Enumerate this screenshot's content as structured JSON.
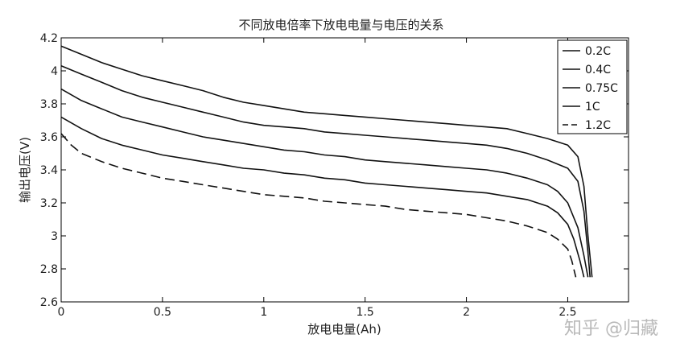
{
  "chart_data": {
    "type": "line",
    "title": "不同放电倍率下放电电量与电压的关系",
    "xlabel": "放电电量(Ah)",
    "ylabel": "输出电压(V)",
    "xlim": [
      0,
      2.8
    ],
    "ylim": [
      2.6,
      4.2
    ],
    "xticks": [
      "0",
      "0.5",
      "1",
      "1.5",
      "2",
      "2.5"
    ],
    "yticks": [
      "2.6",
      "2.8",
      "3",
      "3.2",
      "3.4",
      "3.6",
      "3.8",
      "4",
      "4.2"
    ],
    "grid": false,
    "legend_position": "top-right",
    "series": [
      {
        "name": "0.2C",
        "style": "solid",
        "x": [
          0,
          0.1,
          0.2,
          0.3,
          0.4,
          0.5,
          0.6,
          0.7,
          0.8,
          0.9,
          1.0,
          1.1,
          1.2,
          1.3,
          1.4,
          1.5,
          1.6,
          1.7,
          1.8,
          1.9,
          2.0,
          2.1,
          2.2,
          2.3,
          2.4,
          2.5,
          2.55,
          2.58,
          2.6,
          2.62
        ],
        "y": [
          4.15,
          4.1,
          4.05,
          4.01,
          3.97,
          3.94,
          3.91,
          3.88,
          3.84,
          3.81,
          3.79,
          3.77,
          3.75,
          3.74,
          3.73,
          3.72,
          3.71,
          3.7,
          3.69,
          3.68,
          3.67,
          3.66,
          3.65,
          3.62,
          3.59,
          3.55,
          3.48,
          3.3,
          3.0,
          2.75
        ]
      },
      {
        "name": "0.4C",
        "style": "solid",
        "x": [
          0,
          0.1,
          0.2,
          0.3,
          0.4,
          0.5,
          0.6,
          0.7,
          0.8,
          0.9,
          1.0,
          1.1,
          1.2,
          1.3,
          1.4,
          1.5,
          1.6,
          1.7,
          1.8,
          1.9,
          2.0,
          2.1,
          2.2,
          2.3,
          2.4,
          2.5,
          2.55,
          2.58,
          2.6,
          2.61
        ],
        "y": [
          4.03,
          3.98,
          3.93,
          3.88,
          3.84,
          3.81,
          3.78,
          3.75,
          3.72,
          3.69,
          3.67,
          3.66,
          3.65,
          3.63,
          3.62,
          3.61,
          3.6,
          3.59,
          3.58,
          3.57,
          3.56,
          3.55,
          3.53,
          3.5,
          3.46,
          3.41,
          3.33,
          3.15,
          2.9,
          2.75
        ]
      },
      {
        "name": "0.75C",
        "style": "solid",
        "x": [
          0,
          0.1,
          0.2,
          0.3,
          0.4,
          0.5,
          0.6,
          0.7,
          0.8,
          0.9,
          1.0,
          1.1,
          1.2,
          1.3,
          1.4,
          1.5,
          1.6,
          1.7,
          1.8,
          1.9,
          2.0,
          2.1,
          2.2,
          2.3,
          2.4,
          2.45,
          2.5,
          2.55,
          2.58,
          2.6
        ],
        "y": [
          3.89,
          3.82,
          3.77,
          3.72,
          3.69,
          3.66,
          3.63,
          3.6,
          3.58,
          3.56,
          3.54,
          3.52,
          3.51,
          3.49,
          3.48,
          3.46,
          3.45,
          3.44,
          3.43,
          3.42,
          3.41,
          3.4,
          3.38,
          3.35,
          3.31,
          3.27,
          3.2,
          3.05,
          2.88,
          2.75
        ]
      },
      {
        "name": "1C",
        "style": "solid",
        "x": [
          0,
          0.1,
          0.2,
          0.3,
          0.4,
          0.5,
          0.6,
          0.7,
          0.8,
          0.9,
          1.0,
          1.1,
          1.2,
          1.3,
          1.4,
          1.5,
          1.6,
          1.7,
          1.8,
          1.9,
          2.0,
          2.1,
          2.2,
          2.3,
          2.4,
          2.45,
          2.5,
          2.53,
          2.56,
          2.58
        ],
        "y": [
          3.72,
          3.65,
          3.59,
          3.55,
          3.52,
          3.49,
          3.47,
          3.45,
          3.43,
          3.41,
          3.4,
          3.38,
          3.37,
          3.35,
          3.34,
          3.32,
          3.31,
          3.3,
          3.29,
          3.28,
          3.27,
          3.26,
          3.24,
          3.22,
          3.18,
          3.14,
          3.07,
          2.98,
          2.85,
          2.75
        ]
      },
      {
        "name": "1.2C",
        "style": "dashed",
        "x": [
          0,
          0.05,
          0.1,
          0.2,
          0.3,
          0.4,
          0.5,
          0.6,
          0.7,
          0.8,
          0.9,
          1.0,
          1.1,
          1.2,
          1.3,
          1.4,
          1.5,
          1.6,
          1.7,
          1.8,
          1.9,
          2.0,
          2.1,
          2.2,
          2.3,
          2.4,
          2.45,
          2.5,
          2.52,
          2.54
        ],
        "y": [
          3.62,
          3.55,
          3.5,
          3.45,
          3.41,
          3.38,
          3.35,
          3.33,
          3.31,
          3.29,
          3.27,
          3.25,
          3.24,
          3.23,
          3.21,
          3.2,
          3.19,
          3.18,
          3.16,
          3.15,
          3.14,
          3.13,
          3.11,
          3.09,
          3.06,
          3.02,
          2.98,
          2.92,
          2.85,
          2.75
        ]
      }
    ]
  },
  "watermark": "知乎 @归藏"
}
